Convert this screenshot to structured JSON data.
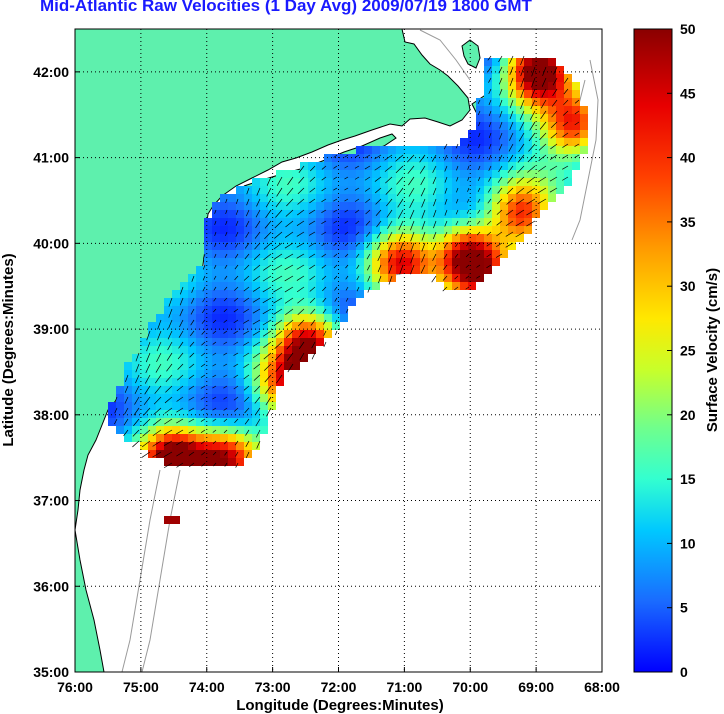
{
  "title": "Mid-Atlantic Raw Velocities (1 Day Avg) 2009/07/19 1800 GMT",
  "colors": {
    "land": "#5ef0ad",
    "title": "#1a1aff",
    "grid": "#000000",
    "isobath": "#9a9a9a"
  },
  "chart_data": {
    "type": "heatmap",
    "title": "Mid-Atlantic Raw Velocities (1 Day Avg) 2009/07/19 1800 GMT",
    "xlabel": "Longitude (Degrees:Minutes)",
    "ylabel": "Latitude (Degrees:Minutes)",
    "xlim": [
      -76,
      -68
    ],
    "ylim": [
      35,
      42.5
    ],
    "x_ticks": [
      "76:00",
      "75:00",
      "74:00",
      "73:00",
      "72:00",
      "71:00",
      "70:00",
      "69:00",
      "68:00"
    ],
    "y_ticks": [
      "35:00",
      "36:00",
      "37:00",
      "38:00",
      "39:00",
      "40:00",
      "41:00",
      "42:00"
    ],
    "grid": true,
    "colorbar": {
      "label": "Surface Velocity (cm/s)",
      "range": [
        0,
        50
      ],
      "ticks": [
        "0",
        "5",
        "10",
        "15",
        "20",
        "25",
        "30",
        "35",
        "40",
        "45",
        "50"
      ]
    }
  }
}
